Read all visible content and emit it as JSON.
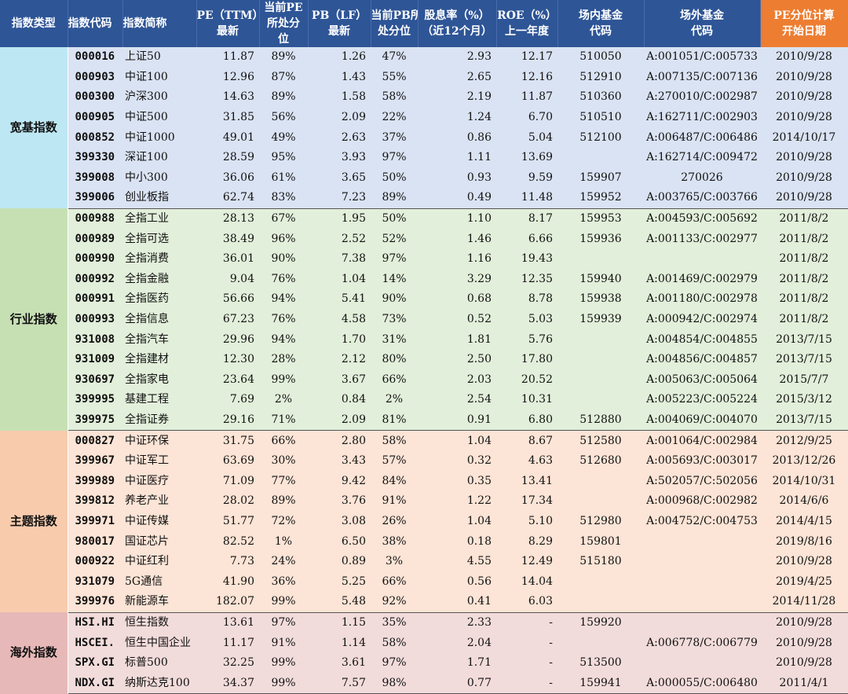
{
  "headers": {
    "type": "指数类型",
    "code": "指数代码",
    "name": "指数简称",
    "pe_line1": "PE（TTM）",
    "pe_line2": "最新",
    "pe_pct_line1": "当前PE",
    "pe_pct_line2": "所处分",
    "pe_pct_line3": "位",
    "pb_line1": "PB（LF）",
    "pb_line2": "最新",
    "pb_pct_line1": "当前PB所",
    "pb_pct_line2": "处分位",
    "div_line1": "股息率（%）",
    "div_line2": "（近12个月）",
    "roe_line1": "ROE（%）",
    "roe_line2": "上一年度",
    "in_fund_line1": "场内基金",
    "in_fund_line2": "代码",
    "out_fund_line1": "场外基金",
    "out_fund_line2": "代码",
    "start_line1": "PE分位计算",
    "start_line2": "开始日期"
  },
  "groups": [
    {
      "label": "宽基指数",
      "rows": [
        {
          "code": "000016",
          "name": "上证50",
          "pe": "11.87",
          "pe_pct": "89%",
          "pb": "1.26",
          "pb_pct": "47%",
          "div": "2.93",
          "roe": "12.17",
          "in_fund": "510050",
          "out_fund": "A:001051/C:005733",
          "start": "2010/9/28"
        },
        {
          "code": "000903",
          "name": "中证100",
          "pe": "12.96",
          "pe_pct": "87%",
          "pb": "1.43",
          "pb_pct": "55%",
          "div": "2.65",
          "roe": "12.16",
          "in_fund": "512910",
          "out_fund": "A:007135/C:007136",
          "start": "2010/9/28"
        },
        {
          "code": "000300",
          "name": "沪深300",
          "pe": "14.63",
          "pe_pct": "89%",
          "pb": "1.58",
          "pb_pct": "58%",
          "div": "2.19",
          "roe": "11.87",
          "in_fund": "510360",
          "out_fund": "A:270010/C:002987",
          "start": "2010/9/28"
        },
        {
          "code": "000905",
          "name": "中证500",
          "pe": "31.85",
          "pe_pct": "56%",
          "pb": "2.09",
          "pb_pct": "22%",
          "div": "1.24",
          "roe": "6.70",
          "in_fund": "510510",
          "out_fund": "A:162711/C:002903",
          "start": "2010/9/28"
        },
        {
          "code": "000852",
          "name": "中证1000",
          "pe": "49.01",
          "pe_pct": "49%",
          "pb": "2.63",
          "pb_pct": "37%",
          "div": "0.86",
          "roe": "5.04",
          "in_fund": "512100",
          "out_fund": "A:006487/C:006486",
          "start": "2014/10/17"
        },
        {
          "code": "399330",
          "name": "深证100",
          "pe": "28.59",
          "pe_pct": "95%",
          "pb": "3.93",
          "pb_pct": "97%",
          "div": "1.11",
          "roe": "13.69",
          "in_fund": "",
          "out_fund": "A:162714/C:009472",
          "start": "2010/9/28"
        },
        {
          "code": "399008",
          "name": "中小300",
          "pe": "36.06",
          "pe_pct": "61%",
          "pb": "3.65",
          "pb_pct": "50%",
          "div": "0.93",
          "roe": "9.59",
          "in_fund": "159907",
          "out_fund": "270026",
          "start": "2010/9/28"
        },
        {
          "code": "399006",
          "name": "创业板指",
          "pe": "62.74",
          "pe_pct": "83%",
          "pb": "7.23",
          "pb_pct": "89%",
          "div": "0.49",
          "roe": "11.48",
          "in_fund": "159952",
          "out_fund": "A:003765/C:003766",
          "start": "2010/9/28"
        }
      ]
    },
    {
      "label": "行业指数",
      "rows": [
        {
          "code": "000988",
          "name": "全指工业",
          "pe": "28.13",
          "pe_pct": "67%",
          "pb": "1.95",
          "pb_pct": "50%",
          "div": "1.10",
          "roe": "8.17",
          "in_fund": "159953",
          "out_fund": "A:004593/C:005692",
          "start": "2011/8/2"
        },
        {
          "code": "000989",
          "name": "全指可选",
          "pe": "38.49",
          "pe_pct": "96%",
          "pb": "2.52",
          "pb_pct": "52%",
          "div": "1.46",
          "roe": "6.66",
          "in_fund": "159936",
          "out_fund": "A:001133/C:002977",
          "start": "2011/8/2"
        },
        {
          "code": "000990",
          "name": "全指消费",
          "pe": "36.01",
          "pe_pct": "90%",
          "pb": "7.38",
          "pb_pct": "97%",
          "div": "1.16",
          "roe": "19.43",
          "in_fund": "",
          "out_fund": "",
          "start": "2011/8/2"
        },
        {
          "code": "000992",
          "name": "全指金融",
          "pe": "9.04",
          "pe_pct": "76%",
          "pb": "1.04",
          "pb_pct": "14%",
          "div": "3.29",
          "roe": "12.35",
          "in_fund": "159940",
          "out_fund": "A:001469/C:002979",
          "start": "2011/8/2"
        },
        {
          "code": "000991",
          "name": "全指医药",
          "pe": "56.66",
          "pe_pct": "94%",
          "pb": "5.41",
          "pb_pct": "90%",
          "div": "0.68",
          "roe": "8.78",
          "in_fund": "159938",
          "out_fund": "A:001180/C:002978",
          "start": "2011/8/2"
        },
        {
          "code": "000993",
          "name": "全指信息",
          "pe": "67.23",
          "pe_pct": "76%",
          "pb": "4.58",
          "pb_pct": "73%",
          "div": "0.52",
          "roe": "5.03",
          "in_fund": "159939",
          "out_fund": "A:000942/C:002974",
          "start": "2011/8/2"
        },
        {
          "code": "931008",
          "name": "全指汽车",
          "pe": "29.96",
          "pe_pct": "94%",
          "pb": "1.70",
          "pb_pct": "31%",
          "div": "1.81",
          "roe": "5.76",
          "in_fund": "",
          "out_fund": "A:004854/C:004855",
          "start": "2013/7/15"
        },
        {
          "code": "931009",
          "name": "全指建材",
          "pe": "12.30",
          "pe_pct": "28%",
          "pb": "2.12",
          "pb_pct": "80%",
          "div": "2.50",
          "roe": "17.80",
          "in_fund": "",
          "out_fund": "A:004856/C:004857",
          "start": "2013/7/15"
        },
        {
          "code": "930697",
          "name": "全指家电",
          "pe": "23.64",
          "pe_pct": "99%",
          "pb": "3.67",
          "pb_pct": "66%",
          "div": "2.03",
          "roe": "20.52",
          "in_fund": "",
          "out_fund": "A:005063/C:005064",
          "start": "2015/7/7"
        },
        {
          "code": "399995",
          "name": "基建工程",
          "pe": "7.69",
          "pe_pct": "2%",
          "pb": "0.84",
          "pb_pct": "2%",
          "div": "2.54",
          "roe": "10.31",
          "in_fund": "",
          "out_fund": "A:005223/C:005224",
          "start": "2015/3/12"
        },
        {
          "code": "399975",
          "name": "全指证券",
          "pe": "29.16",
          "pe_pct": "71%",
          "pb": "2.09",
          "pb_pct": "81%",
          "div": "0.91",
          "roe": "6.80",
          "in_fund": "512880",
          "out_fund": "A:004069/C:004070",
          "start": "2013/7/15"
        }
      ]
    },
    {
      "label": "主题指数",
      "rows": [
        {
          "code": "000827",
          "name": "中证环保",
          "pe": "31.75",
          "pe_pct": "66%",
          "pb": "2.80",
          "pb_pct": "58%",
          "div": "1.04",
          "roe": "8.67",
          "in_fund": "512580",
          "out_fund": "A:001064/C:002984",
          "start": "2012/9/25"
        },
        {
          "code": "399967",
          "name": "中证军工",
          "pe": "63.69",
          "pe_pct": "30%",
          "pb": "3.43",
          "pb_pct": "57%",
          "div": "0.32",
          "roe": "4.63",
          "in_fund": "512680",
          "out_fund": "A:005693/C:003017",
          "start": "2013/12/26"
        },
        {
          "code": "399989",
          "name": "中证医疗",
          "pe": "71.09",
          "pe_pct": "77%",
          "pb": "9.42",
          "pb_pct": "84%",
          "div": "0.35",
          "roe": "13.41",
          "in_fund": "",
          "out_fund": "A:502057/C:502056",
          "start": "2014/10/31"
        },
        {
          "code": "399812",
          "name": "养老产业",
          "pe": "28.02",
          "pe_pct": "89%",
          "pb": "3.76",
          "pb_pct": "91%",
          "div": "1.22",
          "roe": "17.34",
          "in_fund": "",
          "out_fund": "A:000968/C:002982",
          "start": "2014/6/6"
        },
        {
          "code": "399971",
          "name": "中证传媒",
          "pe": "51.77",
          "pe_pct": "72%",
          "pb": "3.08",
          "pb_pct": "26%",
          "div": "1.04",
          "roe": "5.10",
          "in_fund": "512980",
          "out_fund": "A:004752/C:004753",
          "start": "2014/4/15"
        },
        {
          "code": "980017",
          "name": "国证芯片",
          "pe": "82.52",
          "pe_pct": "1%",
          "pb": "6.50",
          "pb_pct": "38%",
          "div": "0.18",
          "roe": "8.29",
          "in_fund": "159801",
          "out_fund": "",
          "start": "2019/8/16"
        },
        {
          "code": "000922",
          "name": "中证红利",
          "pe": "7.73",
          "pe_pct": "24%",
          "pb": "0.89",
          "pb_pct": "3%",
          "div": "4.55",
          "roe": "12.49",
          "in_fund": "515180",
          "out_fund": "",
          "start": "2010/9/28"
        },
        {
          "code": "931079",
          "name": "5G通信",
          "pe": "41.90",
          "pe_pct": "36%",
          "pb": "5.25",
          "pb_pct": "66%",
          "div": "0.56",
          "roe": "14.04",
          "in_fund": "",
          "out_fund": "",
          "start": "2019/4/25"
        },
        {
          "code": "399976",
          "name": "新能源车",
          "pe": "182.07",
          "pe_pct": "99%",
          "pb": "5.48",
          "pb_pct": "92%",
          "div": "0.41",
          "roe": "6.03",
          "in_fund": "",
          "out_fund": "",
          "start": "2014/11/28"
        }
      ]
    },
    {
      "label": "海外指数",
      "rows": [
        {
          "code": "HSI.HI",
          "name": "恒生指数",
          "pe": "13.61",
          "pe_pct": "97%",
          "pb": "1.15",
          "pb_pct": "35%",
          "div": "2.33",
          "roe": "-",
          "in_fund": "159920",
          "out_fund": "",
          "start": "2010/9/28"
        },
        {
          "code": "HSCEI.",
          "name": "恒生中国企业",
          "pe": "11.17",
          "pe_pct": "91%",
          "pb": "1.14",
          "pb_pct": "58%",
          "div": "2.04",
          "roe": "-",
          "in_fund": "",
          "out_fund": "A:006778/C:006779",
          "start": "2010/9/28"
        },
        {
          "code": "SPX.GI",
          "name": "标普500",
          "pe": "32.25",
          "pe_pct": "99%",
          "pb": "3.61",
          "pb_pct": "97%",
          "div": "1.71",
          "roe": "-",
          "in_fund": "513500",
          "out_fund": "",
          "start": "2010/9/28"
        },
        {
          "code": "NDX.GI",
          "name": "纳斯达克100",
          "pe": "34.37",
          "pe_pct": "99%",
          "pb": "7.57",
          "pb_pct": "98%",
          "div": "0.77",
          "roe": "-",
          "in_fund": "159941",
          "out_fund": "A:000055/C:006480",
          "start": "2011/4/1"
        }
      ]
    }
  ],
  "colors": {
    "header_bg": "#2e5596",
    "header_highlight": "#ed7d31",
    "broad_row": "#dae3f3",
    "industry_row": "#e2efda",
    "theme_row": "#fce4d6",
    "overseas_row": "#f2dcdb"
  }
}
